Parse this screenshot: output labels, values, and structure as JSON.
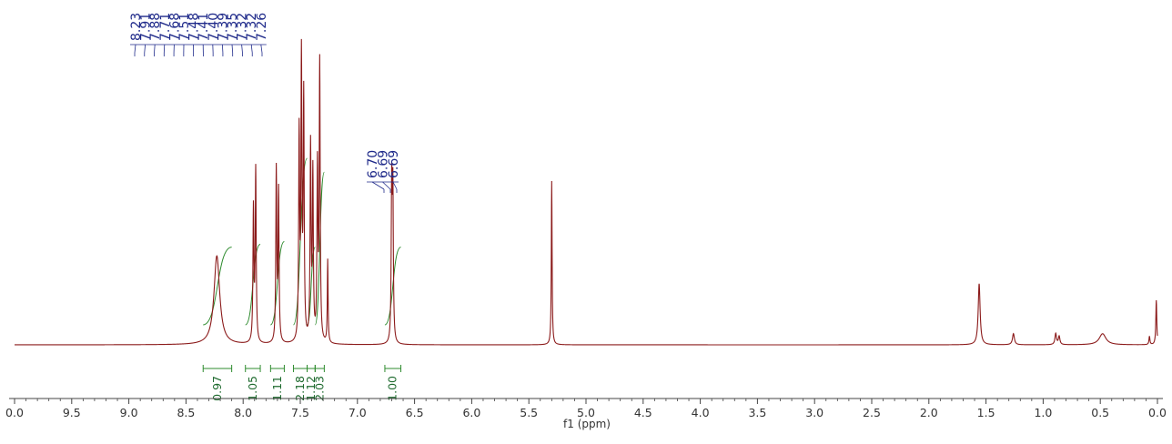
{
  "chart_data": {
    "type": "line",
    "xlabel": "f1 (ppm)",
    "xlim": [
      10.0,
      0.0
    ],
    "x_ticks": [
      "0.0",
      "9.5",
      "9.0",
      "8.5",
      "8.0",
      "7.5",
      "7.0",
      "6.5",
      "6.0",
      "5.5",
      "5.0",
      "4.5",
      "4.0",
      "3.5",
      "3.0",
      "2.5",
      "2.0",
      "1.5",
      "1.0",
      "0.5",
      "0.0"
    ],
    "grid": false,
    "colors": {
      "spectrum": "#8b1a1a",
      "integral": "#2e8b2e",
      "peak_label": "#1f2a8a"
    },
    "series": [
      {
        "peaks": [
          {
            "ppm": 8.23,
            "height": 0.32,
            "width": 0.03
          },
          {
            "ppm": 7.91,
            "height": 0.48,
            "width": 0.005
          },
          {
            "ppm": 7.89,
            "height": 0.62,
            "width": 0.005
          },
          {
            "ppm": 7.71,
            "height": 0.62,
            "width": 0.005
          },
          {
            "ppm": 7.69,
            "height": 0.54,
            "width": 0.005
          },
          {
            "ppm": 7.51,
            "height": 0.74,
            "width": 0.005
          },
          {
            "ppm": 7.49,
            "height": 1.0,
            "width": 0.005
          },
          {
            "ppm": 7.47,
            "height": 0.87,
            "width": 0.005
          },
          {
            "ppm": 7.41,
            "height": 0.7,
            "width": 0.005
          },
          {
            "ppm": 7.39,
            "height": 0.6,
            "width": 0.005
          },
          {
            "ppm": 7.35,
            "height": 0.62,
            "width": 0.005
          },
          {
            "ppm": 7.33,
            "height": 1.0,
            "width": 0.005
          },
          {
            "ppm": 7.26,
            "height": 0.3,
            "width": 0.004
          },
          {
            "ppm": 6.7,
            "height": 0.55,
            "width": 0.005
          },
          {
            "ppm": 6.69,
            "height": 0.53,
            "width": 0.005
          },
          {
            "ppm": 5.3,
            "height": 0.59,
            "width": 0.004
          },
          {
            "ppm": 1.56,
            "height": 0.22,
            "width": 0.01
          },
          {
            "ppm": 1.26,
            "height": 0.04,
            "width": 0.01
          },
          {
            "ppm": 0.89,
            "height": 0.04,
            "width": 0.008
          },
          {
            "ppm": 0.86,
            "height": 0.03,
            "width": 0.008
          },
          {
            "ppm": 0.48,
            "height": 0.04,
            "width": 0.035
          },
          {
            "ppm": 0.07,
            "height": 0.03,
            "width": 0.005
          },
          {
            "ppm": 0.01,
            "height": 0.16,
            "width": 0.005
          }
        ]
      }
    ],
    "peak_labels": {
      "group1": [
        "8.23",
        "7.91",
        "7.88",
        "7.71",
        "7.68",
        "7.51",
        "7.48",
        "7.41",
        "7.40",
        "7.39",
        "7.35",
        "7.32",
        "7.32",
        "7.26"
      ],
      "group2": [
        "6.70",
        "6.69",
        "6.69"
      ]
    },
    "integrals": [
      {
        "from": 8.35,
        "to": 8.1,
        "value": "0.97",
        "rise": 0.28
      },
      {
        "from": 7.98,
        "to": 7.85,
        "value": "1.05",
        "rise": 0.29
      },
      {
        "from": 7.76,
        "to": 7.64,
        "value": "1.11",
        "rise": 0.3
      },
      {
        "from": 7.56,
        "to": 7.44,
        "value": "2.18",
        "rise": 0.6
      },
      {
        "from": 7.44,
        "to": 7.37,
        "value": "1.12",
        "rise": 0.28
      },
      {
        "from": 7.37,
        "to": 7.29,
        "value": "2.03",
        "rise": 0.55
      },
      {
        "from": 6.76,
        "to": 6.62,
        "value": "1.00",
        "rise": 0.28
      }
    ]
  }
}
